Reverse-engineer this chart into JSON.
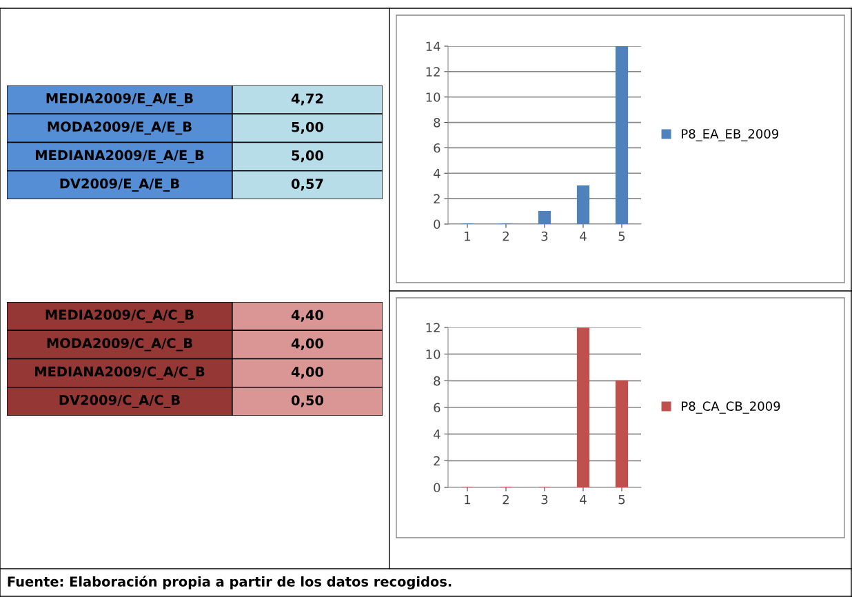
{
  "chart_data": [
    {
      "type": "other",
      "colors": [
        "#558ed5",
        "#b7dde8"
      ],
      "annotations": [
        "MEDIA2009/E_A/E_B",
        "4,72",
        "MODA2009/E_A/E_B",
        "5,00",
        "MEDIANA2009/E_A/E_B",
        "5,00",
        "DV2009/E_A/E_B",
        "0,57"
      ]
    },
    {
      "type": "bar",
      "categories": [
        "1",
        "2",
        "3",
        "4",
        "5"
      ],
      "series": [
        {
          "name": "P8_EA_EB_2009",
          "color": "#4f81bd",
          "values": [
            0,
            0,
            1,
            3,
            14
          ]
        }
      ],
      "ylim": [
        0,
        14
      ],
      "yticks": [
        0,
        2,
        4,
        6,
        8,
        10,
        12,
        14
      ],
      "grid": "y",
      "legend": "right"
    },
    {
      "type": "other",
      "colors": [
        "#953735",
        "#d99694"
      ],
      "annotations": [
        "MEDIA2009/C_A/C_B",
        "4,40",
        "MODA2009/C_A/C_B",
        "4,00",
        "MEDIANA2009/C_A/C_B",
        "4,00",
        "DV2009/C_A/C_B",
        "0,50"
      ]
    },
    {
      "type": "bar",
      "categories": [
        "1",
        "2",
        "3",
        "4",
        "5"
      ],
      "series": [
        {
          "name": "P8_CA_CB_2009",
          "color": "#c0504d",
          "values": [
            0,
            0,
            0,
            12,
            8
          ]
        }
      ],
      "ylim": [
        0,
        12
      ],
      "yticks": [
        0,
        2,
        4,
        6,
        8,
        10,
        12
      ],
      "grid": "y",
      "legend": "right",
      "annotations": [
        "Fuente: Elaboración propia a partir de los datos recogidos."
      ]
    }
  ]
}
